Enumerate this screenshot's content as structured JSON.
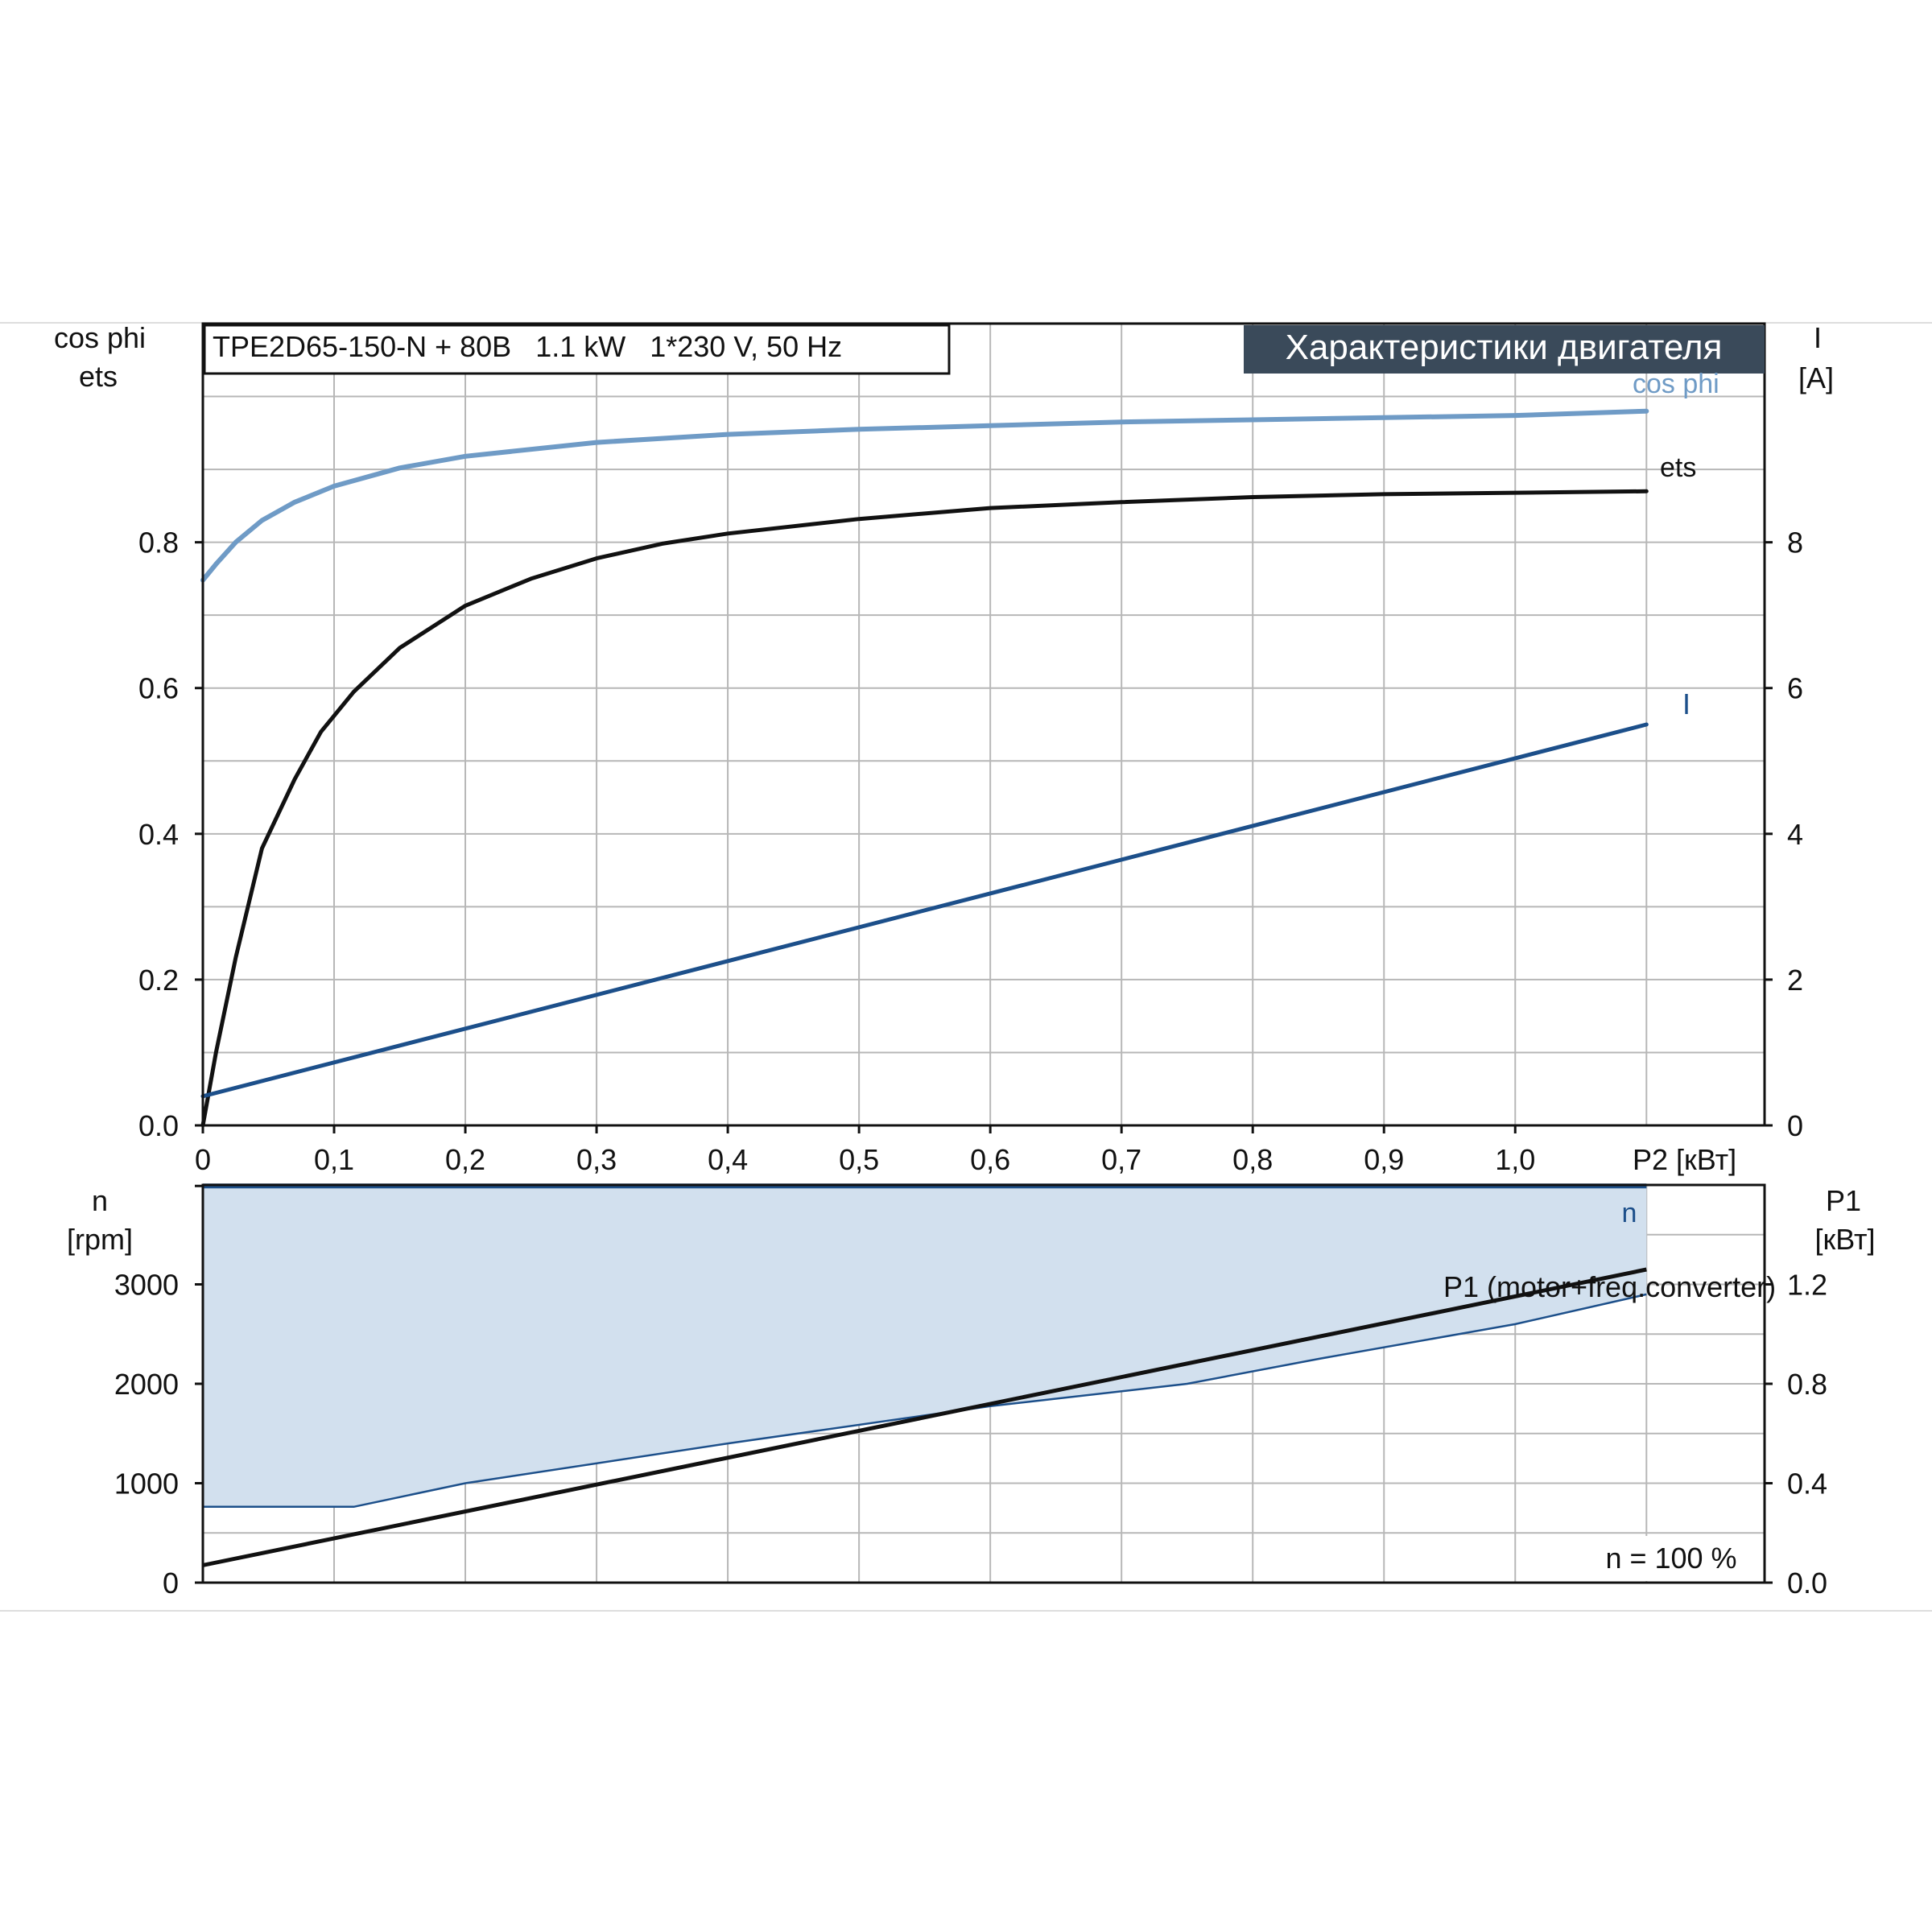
{
  "chart_data": [
    {
      "type": "line",
      "header_box": "TPE2D65-150-N + 80B   1.1 kW   1*230 V, 50 Hz",
      "title_banner": "Характеристики двигателя",
      "left_axis_label_1": "cos phi",
      "left_axis_label_2": "ets",
      "right_axis_label_1": "I",
      "right_axis_label_2": "[A]",
      "xlabel": "P2 [кВт]",
      "x_ticks": [
        "0",
        "0,1",
        "0,2",
        "0,3",
        "0,4",
        "0,5",
        "0,6",
        "0,7",
        "0,8",
        "0,9",
        "1,0"
      ],
      "xlim": [
        0,
        1.19
      ],
      "left_ticks": [
        "0.0",
        "0.2",
        "0.4",
        "0.6",
        "0.8"
      ],
      "left_ylim": [
        0,
        1.1
      ],
      "right_ticks": [
        "0",
        "2",
        "4",
        "6",
        "8"
      ],
      "right_ylim": [
        0,
        11
      ],
      "grid": true,
      "series": [
        {
          "name": "cos phi",
          "axis": "left",
          "color": "#6f9bc6",
          "x": [
            0,
            0.01,
            0.025,
            0.045,
            0.07,
            0.1,
            0.15,
            0.2,
            0.3,
            0.4,
            0.5,
            0.6,
            0.7,
            0.8,
            0.9,
            1.0,
            1.1
          ],
          "values": [
            0.748,
            0.77,
            0.8,
            0.83,
            0.855,
            0.877,
            0.902,
            0.918,
            0.937,
            0.948,
            0.955,
            0.96,
            0.965,
            0.968,
            0.971,
            0.974,
            0.98
          ]
        },
        {
          "name": "ets",
          "axis": "left",
          "color": "#111111",
          "x": [
            0,
            0.01,
            0.025,
            0.045,
            0.07,
            0.09,
            0.115,
            0.15,
            0.2,
            0.25,
            0.3,
            0.35,
            0.4,
            0.5,
            0.6,
            0.7,
            0.8,
            0.9,
            1.0,
            1.1
          ],
          "values": [
            0.0,
            0.1,
            0.23,
            0.38,
            0.475,
            0.54,
            0.595,
            0.655,
            0.713,
            0.75,
            0.778,
            0.798,
            0.812,
            0.832,
            0.847,
            0.855,
            0.862,
            0.866,
            0.868,
            0.87
          ]
        },
        {
          "name": "I",
          "axis": "right",
          "color": "#1c4f8a",
          "x": [
            0,
            1.1
          ],
          "values": [
            0.4,
            5.5
          ]
        }
      ]
    },
    {
      "type": "area",
      "left_axis_label_1": "n",
      "left_axis_label_2": "[rpm]",
      "right_axis_label_1": "P1",
      "right_axis_label_2": "[кВт]",
      "xlim": [
        0,
        1.19
      ],
      "left_ticks": [
        "0",
        "1000",
        "2000",
        "3000"
      ],
      "left_ylim": [
        0,
        4000
      ],
      "right_ticks": [
        "0.0",
        "0.4",
        "0.8",
        "1.2"
      ],
      "right_ylim": [
        0,
        1.6
      ],
      "annotation": "n = 100 %",
      "grid": true,
      "series": [
        {
          "name": "n",
          "axis": "left",
          "color": "#1c4f8a",
          "x": [
            0,
            1.1
          ],
          "values": [
            3990,
            3990
          ]
        },
        {
          "name": "P1 (motor+freq.converter)",
          "axis": "right",
          "color": "#111111",
          "x": [
            0,
            1.1
          ],
          "values": [
            0.07,
            1.26
          ]
        },
        {
          "axis": "right",
          "color": "#1c4f8a",
          "x": [
            0,
            0.115,
            0.2,
            0.4,
            0.6,
            0.75,
            0.85,
            1.0,
            1.1
          ],
          "values": [
            0.305,
            0.305,
            0.4,
            0.56,
            0.71,
            0.8,
            0.9,
            1.04,
            1.16
          ]
        }
      ],
      "fill_color": "#d2e0ee"
    }
  ]
}
